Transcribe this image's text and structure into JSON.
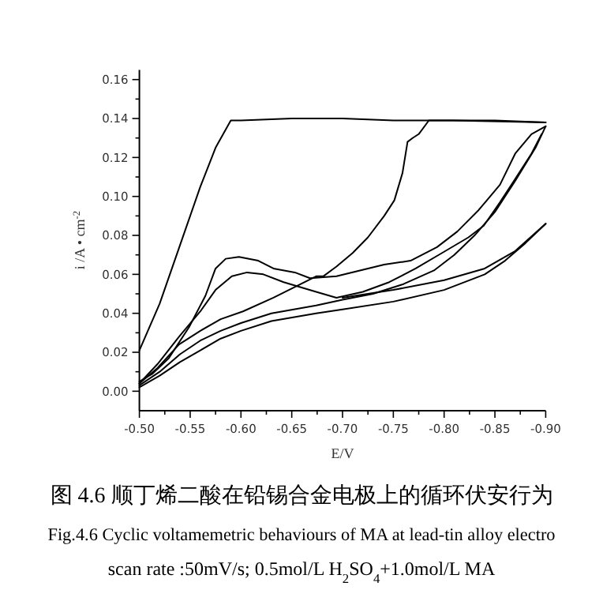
{
  "chart_data": {
    "type": "line",
    "xlabel": "E/V",
    "ylabel": "i /A • cm$^{-2}$",
    "xlim": [
      -0.5,
      -0.9
    ],
    "ylim": [
      -0.01,
      0.165
    ],
    "xticks": [
      {
        "value": -0.5,
        "label": "-0.50"
      },
      {
        "value": -0.525,
        "label": null
      },
      {
        "value": -0.55,
        "label": "-0.55"
      },
      {
        "value": -0.575,
        "label": null
      },
      {
        "value": -0.6,
        "label": "-0.60"
      },
      {
        "value": -0.625,
        "label": null
      },
      {
        "value": -0.65,
        "label": "-0.65"
      },
      {
        "value": -0.675,
        "label": null
      },
      {
        "value": -0.7,
        "label": "-0.70"
      },
      {
        "value": -0.725,
        "label": null
      },
      {
        "value": -0.75,
        "label": "-0.75"
      },
      {
        "value": -0.775,
        "label": null
      },
      {
        "value": -0.8,
        "label": "-0.80"
      },
      {
        "value": -0.825,
        "label": null
      },
      {
        "value": -0.85,
        "label": "-0.85"
      },
      {
        "value": -0.875,
        "label": null
      },
      {
        "value": -0.9,
        "label": "-0.90"
      }
    ],
    "yticks": [
      {
        "value": 0,
        "label": "0.00"
      },
      {
        "value": 0.01,
        "label": null
      },
      {
        "value": 0.02,
        "label": "0.02"
      },
      {
        "value": 0.03,
        "label": null
      },
      {
        "value": 0.04,
        "label": "0.04"
      },
      {
        "value": 0.05,
        "label": null
      },
      {
        "value": 0.06,
        "label": "0.06"
      },
      {
        "value": 0.07,
        "label": null
      },
      {
        "value": 0.08,
        "label": "0.08"
      },
      {
        "value": 0.09,
        "label": null
      },
      {
        "value": 0.1,
        "label": "0.10"
      },
      {
        "value": 0.11,
        "label": null
      },
      {
        "value": 0.12,
        "label": "0.12"
      },
      {
        "value": 0.13,
        "label": null
      },
      {
        "value": 0.14,
        "label": "0.14"
      },
      {
        "value": 0.15,
        "label": null
      },
      {
        "value": 0.16,
        "label": "0.16"
      }
    ],
    "series": [
      {
        "color": "#000000",
        "x": [
          -0.5,
          -0.52,
          -0.54,
          -0.56,
          -0.575,
          -0.59,
          -0.6,
          -0.65,
          -0.7,
          -0.75,
          -0.8,
          -0.85,
          -0.9
        ],
        "values": [
          0.021,
          0.045,
          0.075,
          0.105,
          0.125,
          0.139,
          0.139,
          0.14,
          0.14,
          0.139,
          0.139,
          0.139,
          0.138
        ]
      },
      {
        "color": "#000000",
        "x": [
          -0.9,
          -0.886,
          -0.87,
          -0.855,
          -0.834,
          -0.813,
          -0.793,
          -0.767,
          -0.741,
          -0.694,
          -0.668,
          -0.653,
          -0.632,
          -0.617,
          -0.598,
          -0.585,
          -0.575,
          -0.565,
          -0.549,
          -0.529,
          -0.513,
          -0.5
        ],
        "values": [
          0.136,
          0.132,
          0.122,
          0.106,
          0.093,
          0.082,
          0.074,
          0.067,
          0.065,
          0.059,
          0.058,
          0.061,
          0.063,
          0.067,
          0.069,
          0.068,
          0.063,
          0.049,
          0.033,
          0.017,
          0.009,
          0.005
        ]
      },
      {
        "color": "#000000",
        "x": [
          -0.5,
          -0.518,
          -0.539,
          -0.56,
          -0.58,
          -0.602,
          -0.632,
          -0.674,
          -0.681,
          -0.694,
          -0.71,
          -0.725,
          -0.741,
          -0.751,
          -0.759,
          -0.764,
          -0.769,
          -0.775,
          -0.785,
          -0.808,
          -0.9
        ],
        "values": [
          0.004,
          0.012,
          0.024,
          0.031,
          0.037,
          0.041,
          0.048,
          0.059,
          0.059,
          0.064,
          0.071,
          0.079,
          0.09,
          0.098,
          0.112,
          0.128,
          0.13,
          0.132,
          0.139,
          0.139,
          0.138
        ]
      },
      {
        "color": "#000000",
        "x": [
          -0.896,
          -0.886,
          -0.87,
          -0.855,
          -0.839,
          -0.824,
          -0.798,
          -0.772,
          -0.746,
          -0.72,
          -0.694,
          -0.674,
          -0.642,
          -0.622,
          -0.606,
          -0.591,
          -0.575,
          -0.56,
          -0.539,
          -0.518,
          -0.5
        ],
        "values": [
          0.132,
          0.122,
          0.109,
          0.097,
          0.085,
          0.079,
          0.071,
          0.063,
          0.056,
          0.051,
          0.048,
          0.051,
          0.056,
          0.06,
          0.061,
          0.059,
          0.052,
          0.041,
          0.028,
          0.014,
          0.004
        ]
      },
      {
        "color": "#000000",
        "x": [
          -0.5,
          -0.52,
          -0.54,
          -0.56,
          -0.58,
          -0.6,
          -0.63,
          -0.674,
          -0.7,
          -0.73,
          -0.76,
          -0.79,
          -0.81,
          -0.83,
          -0.85,
          -0.87,
          -0.89,
          -0.9
        ],
        "values": [
          0.003,
          0.01,
          0.019,
          0.026,
          0.031,
          0.035,
          0.04,
          0.044,
          0.047,
          0.05,
          0.055,
          0.062,
          0.07,
          0.08,
          0.092,
          0.108,
          0.125,
          0.136
        ]
      },
      {
        "color": "#000000",
        "x": [
          -0.5,
          -0.52,
          -0.54,
          -0.56,
          -0.58,
          -0.6,
          -0.63,
          -0.674,
          -0.7,
          -0.75,
          -0.8,
          -0.84,
          -0.86,
          -0.88,
          -0.9
        ],
        "values": [
          0.002,
          0.008,
          0.015,
          0.021,
          0.027,
          0.031,
          0.036,
          0.04,
          0.042,
          0.046,
          0.052,
          0.06,
          0.067,
          0.076,
          0.086
        ]
      },
      {
        "color": "#000000",
        "x": [
          -0.9,
          -0.87,
          -0.84,
          -0.8,
          -0.75,
          -0.7
        ],
        "values": [
          0.086,
          0.072,
          0.063,
          0.057,
          0.052,
          0.048
        ]
      }
    ],
    "annotations": [
      "图 4.6 顺丁烯二酸在铅锡合金电极上的循环伏安行为",
      "Fig.4.6 Cyclic voltamemetric behaviours of MA at lead-tin alloy electro",
      "scan rate :50mV/s; 0.5mol/L H$_{2}$SO$_{4}$+1.0mol/L MA"
    ]
  }
}
